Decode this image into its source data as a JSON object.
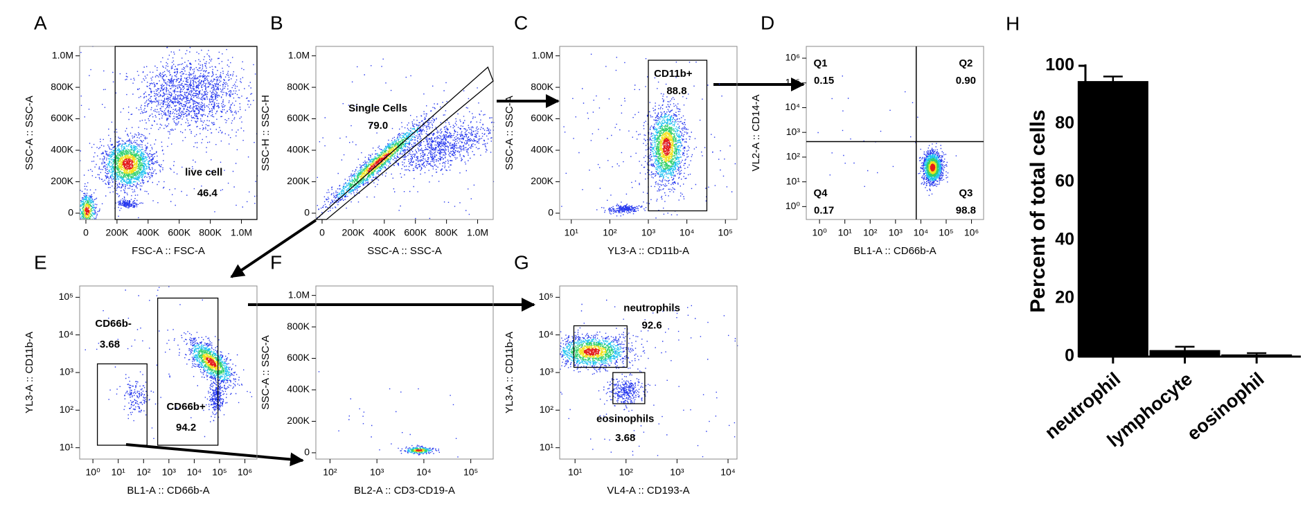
{
  "chart_data": [
    {
      "type": "flow",
      "panel": "A",
      "xlabel": "FSC-A :: FSC-A",
      "ylabel": "SSC-A :: SSC-A",
      "xscale": "linear",
      "yscale": "linear",
      "xlim": [
        -40000,
        1100000
      ],
      "ylim": [
        -40000,
        1060000
      ],
      "xticks": [
        0,
        {
          "value": 200000,
          "label": "200K"
        },
        {
          "value": 400000,
          "label": "400K"
        },
        {
          "value": 600000,
          "label": "600K"
        },
        {
          "value": 800000,
          "label": "800K"
        },
        {
          "value": 1000000,
          "label": "1.0M"
        }
      ],
      "yticks": [
        0,
        {
          "value": 200000,
          "label": "200K"
        },
        {
          "value": 400000,
          "label": "400K"
        },
        {
          "value": 600000,
          "label": "600K"
        },
        {
          "value": 800000,
          "label": "800K"
        },
        {
          "value": 1000000,
          "label": "1.0M"
        }
      ],
      "categories": [
        "live cell"
      ],
      "values": [
        46.4
      ]
    },
    {
      "type": "flow",
      "panel": "B",
      "xlabel": "SSC-A :: SSC-A",
      "ylabel": "SSC-H :: SSC-H",
      "xscale": "linear",
      "yscale": "linear",
      "xlim": [
        -40000,
        1100000
      ],
      "ylim": [
        -40000,
        1060000
      ],
      "xticks": [
        0,
        {
          "value": 200000,
          "label": "200K"
        },
        {
          "value": 400000,
          "label": "400K"
        },
        {
          "value": 600000,
          "label": "600K"
        },
        {
          "value": 800000,
          "label": "800K"
        },
        {
          "value": 1000000,
          "label": "1.0M"
        }
      ],
      "yticks": [
        0,
        {
          "value": 200000,
          "label": "200K"
        },
        {
          "value": 400000,
          "label": "400K"
        },
        {
          "value": 600000,
          "label": "600K"
        },
        {
          "value": 800000,
          "label": "800K"
        },
        {
          "value": 1000000,
          "label": "1.0M"
        }
      ],
      "categories": [
        "Single Cells"
      ],
      "values": [
        79.0
      ],
      "value_labels": [
        "79.0"
      ]
    },
    {
      "type": "flow",
      "panel": "C",
      "xlabel": "YL3-A :: CD11b-A",
      "ylabel": "SSC-A :: SSC-A",
      "xscale": "log",
      "yscale": "linear",
      "xlim": [
        5,
        200000
      ],
      "ylim": [
        -40000,
        1060000
      ],
      "xticks": [
        {
          "value": 10,
          "label": "10¹"
        },
        {
          "value": 100,
          "label": "10²"
        },
        {
          "value": 1000,
          "label": "10³"
        },
        {
          "value": 10000,
          "label": "10⁴"
        },
        {
          "value": 100000,
          "label": "10⁵"
        }
      ],
      "yticks": [
        0,
        {
          "value": 200000,
          "label": "200K"
        },
        {
          "value": 400000,
          "label": "400K"
        },
        {
          "value": 600000,
          "label": "600K"
        },
        {
          "value": 800000,
          "label": "800K"
        },
        {
          "value": 1000000,
          "label": "1.0M"
        }
      ],
      "categories": [
        "CD11b+"
      ],
      "values": [
        88.8
      ]
    },
    {
      "type": "flow",
      "panel": "D",
      "xlabel": "BL1-A :: CD66b-A",
      "ylabel": "VL2-A :: CD14-A",
      "xscale": "log",
      "yscale": "log",
      "xlim": [
        0.3,
        3000000
      ],
      "ylim": [
        0.3,
        3000000
      ],
      "xticks": [
        {
          "value": 1,
          "label": "10⁰"
        },
        {
          "value": 10,
          "label": "10¹"
        },
        {
          "value": 100,
          "label": "10²"
        },
        {
          "value": 1000,
          "label": "10³"
        },
        {
          "value": 10000,
          "label": "10⁴"
        },
        {
          "value": 100000,
          "label": "10⁵"
        },
        {
          "value": 1000000,
          "label": "10⁶"
        }
      ],
      "yticks": [
        {
          "value": 1,
          "label": "10⁰"
        },
        {
          "value": 10,
          "label": "10¹"
        },
        {
          "value": 100,
          "label": "10²"
        },
        {
          "value": 1000,
          "label": "10³"
        },
        {
          "value": 10000,
          "label": "10⁴"
        },
        {
          "value": 100000,
          "label": "10⁵"
        },
        {
          "value": 1000000,
          "label": "10⁶"
        }
      ],
      "categories": [
        "Q1",
        "Q2",
        "Q3",
        "Q4"
      ],
      "values": [
        0.15,
        0.9,
        98.8,
        0.17
      ],
      "value_labels": [
        "0.15",
        "0.90",
        "98.8",
        "0.17"
      ]
    },
    {
      "type": "flow",
      "panel": "E",
      "xlabel": "BL1-A :: CD66b-A",
      "ylabel": "YL3-A :: CD11b-A",
      "xscale": "log",
      "yscale": "log",
      "xlim": [
        0.3,
        3000000
      ],
      "ylim": [
        5,
        200000
      ],
      "xticks": [
        {
          "value": 1,
          "label": "10⁰"
        },
        {
          "value": 10,
          "label": "10¹"
        },
        {
          "value": 100,
          "label": "10²"
        },
        {
          "value": 1000,
          "label": "10³"
        },
        {
          "value": 10000,
          "label": "10⁴"
        },
        {
          "value": 100000,
          "label": "10⁵"
        },
        {
          "value": 1000000,
          "label": "10⁶"
        }
      ],
      "yticks": [
        {
          "value": 10,
          "label": "10¹"
        },
        {
          "value": 100,
          "label": "10²"
        },
        {
          "value": 1000,
          "label": "10³"
        },
        {
          "value": 10000,
          "label": "10⁴"
        },
        {
          "value": 100000,
          "label": "10⁵"
        }
      ],
      "categories": [
        "CD66b-",
        "CD66b+"
      ],
      "values": [
        3.68,
        94.2
      ]
    },
    {
      "type": "flow",
      "panel": "F",
      "xlabel": "BL2-A :: CD3-CD19-A",
      "ylabel": "SSC-A :: SSC-A",
      "xscale": "log",
      "yscale": "linear",
      "xlim": [
        50,
        300000
      ],
      "ylim": [
        -40000,
        1060000
      ],
      "xticks": [
        {
          "value": 100,
          "label": "10²"
        },
        {
          "value": 1000,
          "label": "10³"
        },
        {
          "value": 10000,
          "label": "10⁴"
        },
        {
          "value": 100000,
          "label": "10⁵"
        }
      ],
      "yticks": [
        0,
        {
          "value": 200000,
          "label": "200K"
        },
        {
          "value": 400000,
          "label": "400K"
        },
        {
          "value": 600000,
          "label": "600K"
        },
        {
          "value": 800000,
          "label": "800K"
        },
        {
          "value": 1000000,
          "label": "1.0M"
        }
      ]
    },
    {
      "type": "flow",
      "panel": "G",
      "xlabel": "VL4-A :: CD193-A",
      "ylabel": "YL3-A :: CD11b-A",
      "xscale": "log",
      "yscale": "log",
      "xlim": [
        5,
        15000
      ],
      "ylim": [
        5,
        200000
      ],
      "xticks": [
        {
          "value": 10,
          "label": "10¹"
        },
        {
          "value": 100,
          "label": "10²"
        },
        {
          "value": 1000,
          "label": "10³"
        },
        {
          "value": 10000,
          "label": "10⁴"
        }
      ],
      "yticks": [
        {
          "value": 10,
          "label": "10¹"
        },
        {
          "value": 100,
          "label": "10²"
        },
        {
          "value": 1000,
          "label": "10³"
        },
        {
          "value": 10000,
          "label": "10⁴"
        },
        {
          "value": 100000,
          "label": "10⁵"
        }
      ],
      "categories": [
        "neutrophils",
        "eosinophils"
      ],
      "values": [
        92.6,
        3.68
      ]
    },
    {
      "type": "bar",
      "panel": "H",
      "ylabel": "Percent of total cells",
      "categories": [
        "neutrophil",
        "lymphocyte",
        "eosinophil"
      ],
      "values": [
        94.5,
        2.0,
        0.5
      ],
      "errors": [
        1.8,
        1.4,
        0.7
      ],
      "color": "#000000",
      "ylim": [
        0,
        100
      ],
      "yticks": [
        0,
        20,
        40,
        60,
        80,
        100
      ]
    }
  ]
}
